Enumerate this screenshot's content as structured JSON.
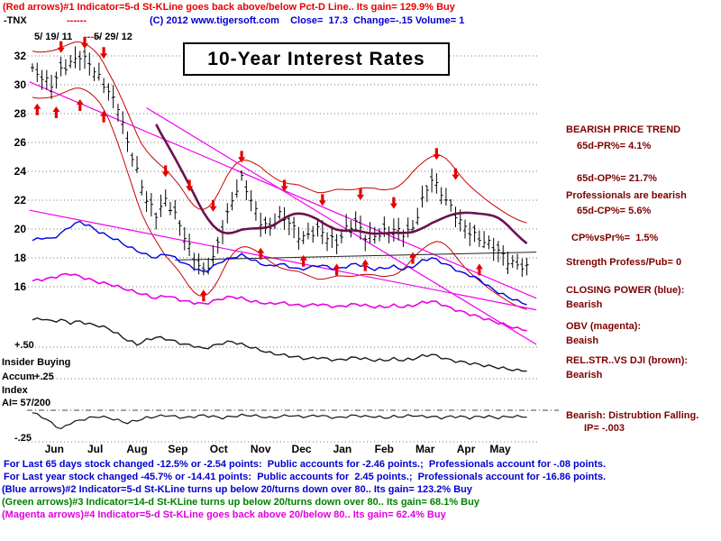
{
  "colors": {
    "red": "#e80000",
    "blue": "#0000d0",
    "green": "#008000",
    "magenta": "#e000e0",
    "maroon": "#7d0000",
    "black": "#000000"
  },
  "header": {
    "line1": "(Red arrows)#1 Indicator=5-d St-KLine goes back above/below Pct-D Line.. Its gain= 129.9% Buy",
    "ticker": "-TNX",
    "dashes": "------",
    "info": "(C) 2012 www.tigersoft.com    Close=  17.3  Change=-.15 Volume= 1",
    "date_start": "5/ 19/ 11",
    "date_sep": "-----",
    "date_end": "5/ 29/ 12",
    "title": "10-Year Interest  Rates"
  },
  "left_axis": {
    "plus50": "+.50",
    "plus25": "+.25",
    "minus25": "-.25",
    "insider": "Insider Buying",
    "accum": "Accum",
    "index": "Index",
    "ai": "AI= 57/200"
  },
  "right_panel": {
    "color": "#7d0000",
    "lines": [
      "BEARISH PRICE TREND",
      "65d-PR%= 4.1%",
      "65d-OP%= 21.7%",
      "Professionals are bearish",
      "65d-CP%= 5.6%",
      "CP%vsPr%=  1.5%",
      "Strength Profess/Pub= 0",
      "CLOSING POWER (blue):",
      "Bearish",
      "OBV (magenta):",
      "Beaish",
      "REL.STR..VS DJI (brown):",
      "Bearish",
      "Bearish: Distrubtion Falling.",
      "IP= -.003"
    ]
  },
  "footer": {
    "lines": [
      {
        "text": "For Last 65 days stock changed -12.5% or -2.54 points:  Public accounts for -2.46 points.;  Professionals account for -.08 points.",
        "color": "#0000d0"
      },
      {
        "text": "For Last year stock changed -45.7% or -14.41 points:  Public accounts for  2.45 points.;  Professionals account for -16.86 points.",
        "color": "#0000d0"
      },
      {
        "text": "(Blue arrows)#2 Indicator=5-d St-KLine turns up below 20/turns down over 80.. Its gain= 123.2% Buy",
        "color": "#0000d0"
      },
      {
        "text": "(Green arrows)#3 Indicator=14-d St-KLine turns up below 20/turns down over 80.. Its gain= 68.1% Buy",
        "color": "#008000"
      },
      {
        "text": "(Magenta arrows)#4 Indicator=5-d St-KLine goes back above 20/below 80.. Its gain= 62.4% Buy",
        "color": "#e000e0"
      }
    ]
  },
  "chart_data": {
    "type": "candlestick+line",
    "title": "10-Year Interest  Rates",
    "ticker": "-TNX",
    "close_last": 17.3,
    "change": -0.15,
    "volume": 1,
    "x_unit": "weeks from 5/19/2011 to 5/29/2012",
    "months": [
      "Jun",
      "Jul",
      "Aug",
      "Sep",
      "Oct",
      "Nov",
      "Dec",
      "Jan",
      "Feb",
      "Mar",
      "Apr",
      "May"
    ],
    "month_positions": [
      2.3,
      6.6,
      11,
      15.3,
      19.6,
      24,
      28.3,
      32.6,
      37,
      41.3,
      45.6,
      49.2
    ],
    "price_axis": {
      "min": 16,
      "max": 32,
      "ticks": [
        32,
        30,
        28,
        26,
        24,
        22,
        20,
        18,
        16
      ]
    },
    "accum_axis": {
      "ticks": [
        0.5,
        0.25,
        -0.25
      ],
      "zero_line": 0,
      "ai_reading": "57/200"
    },
    "close": [
      31,
      30.5,
      30,
      31,
      31.5,
      32,
      31.5,
      30.5,
      29.5,
      28.5,
      26,
      24,
      22,
      21,
      22,
      21,
      19.5,
      18,
      17,
      18,
      20,
      22,
      23.5,
      22,
      20.5,
      20,
      21,
      20.5,
      19.5,
      19.5,
      20,
      19.5,
      19,
      20,
      20.5,
      19.5,
      19.5,
      19.8,
      20,
      19.7,
      20,
      22,
      23.5,
      22.5,
      21.5,
      20.5,
      19.8,
      19.3,
      19,
      18.5,
      17.8,
      17.5,
      17.3
    ],
    "series": [
      {
        "name": "closing_power",
        "color": "#0000e0",
        "width": 1.4,
        "values": [
          19.2,
          19.4,
          19.3,
          19.7,
          20.2,
          20.5,
          20.2,
          19.8,
          19.5,
          19.2,
          18.8,
          18.5,
          18.2,
          18.0,
          18.3,
          18.0,
          17.6,
          17.3,
          17.0,
          17.4,
          17.8,
          18.0,
          18.2,
          17.9,
          17.6,
          17.4,
          17.6,
          17.4,
          17.2,
          17.3,
          17.5,
          17.4,
          17.2,
          17.4,
          17.6,
          17.4,
          17.2,
          17.3,
          17.4,
          17.2,
          17.4,
          17.8,
          18.0,
          17.7,
          17.4,
          17.0,
          16.8,
          16.5,
          16.0,
          15.6,
          15.3,
          15.0,
          14.8
        ]
      },
      {
        "name": "obv",
        "color": "#e800e8",
        "width": 1.6,
        "values": [
          16.4,
          16.5,
          16.6,
          16.8,
          16.9,
          16.7,
          16.5,
          16.3,
          16.2,
          16.0,
          15.8,
          15.6,
          15.4,
          15.2,
          15.4,
          15.2,
          15.0,
          14.9,
          14.8,
          15.0,
          15.2,
          15.3,
          15.2,
          15.0,
          14.9,
          14.8,
          14.9,
          14.8,
          14.7,
          14.7,
          14.8,
          14.7,
          14.6,
          14.7,
          14.8,
          14.7,
          14.6,
          14.6,
          14.7,
          14.6,
          14.7,
          14.9,
          15.0,
          14.8,
          14.5,
          14.3,
          14.1,
          13.9,
          13.7,
          13.5,
          13.3,
          13.1,
          13.0
        ]
      },
      {
        "name": "rel_str_vs_dji",
        "color": "#1a1a1a",
        "width": 1.4,
        "values": [
          13.7,
          13.8,
          13.6,
          13.7,
          13.5,
          13.6,
          13.4,
          13.3,
          13.1,
          12.7,
          12.3,
          12.0,
          12.3,
          12.5,
          12.4,
          12.2,
          12.0,
          11.9,
          11.7,
          11.9,
          12.1,
          12.2,
          12.0,
          11.8,
          11.6,
          11.4,
          11.3,
          11.2,
          11.1,
          11.0,
          11.1,
          11.0,
          10.9,
          11.0,
          11.1,
          11.0,
          10.9,
          10.9,
          11.0,
          10.9,
          11.0,
          11.2,
          11.3,
          11.1,
          10.9,
          10.8,
          10.7,
          10.6,
          10.5,
          10.4,
          10.3,
          10.2,
          10.2
        ]
      },
      {
        "name": "accum_index",
        "color": "#111111",
        "width": 1.2,
        "scale": "accum",
        "values": [
          -0.02,
          -0.05,
          -0.1,
          -0.15,
          -0.1,
          -0.08,
          -0.06,
          -0.05,
          -0.06,
          -0.08,
          -0.1,
          -0.08,
          -0.06,
          -0.05,
          -0.04,
          -0.05,
          -0.06,
          -0.05,
          -0.04,
          -0.05,
          -0.06,
          -0.05,
          -0.04,
          -0.04,
          -0.05,
          -0.06,
          -0.05,
          -0.04,
          -0.05,
          -0.05,
          -0.04,
          -0.05,
          -0.06,
          -0.05,
          -0.04,
          -0.05,
          -0.05,
          -0.06,
          -0.05,
          -0.05,
          -0.04,
          -0.05,
          -0.05,
          -0.06,
          -0.05,
          -0.05,
          -0.06,
          -0.05,
          -0.05,
          -0.06,
          -0.05,
          -0.05,
          -0.05
        ]
      }
    ],
    "ma_color": "#6b1150",
    "ma_window_weeks": 8,
    "band_color": "#c80000",
    "arrow_color": "#e60000",
    "trendlines": [
      {
        "color": "#f000f0",
        "from": [
          -0.3,
          30.2
        ],
        "to": [
          53,
          15.2
        ]
      },
      {
        "color": "#f000f0",
        "from": [
          12,
          28.4
        ],
        "to": [
          53,
          12.0
        ]
      },
      {
        "color": "#f000f0",
        "from": [
          -0.3,
          21.3
        ],
        "to": [
          53,
          14.4
        ]
      },
      {
        "color": "#222222",
        "width": 1,
        "from": [
          15,
          17.85
        ],
        "to": [
          53,
          18.4
        ]
      }
    ],
    "arrows": {
      "up": [
        [
          0.5,
          28.7
        ],
        [
          2.5,
          28.5
        ],
        [
          5.0,
          29.0
        ],
        [
          7.5,
          28.2
        ],
        [
          18,
          15.8
        ],
        [
          24,
          18.7
        ],
        [
          28.5,
          18.2
        ],
        [
          32,
          17.6
        ],
        [
          35,
          17.9
        ],
        [
          40,
          18.4
        ],
        [
          47,
          17.6
        ]
      ],
      "down": [
        [
          3,
          32.2
        ],
        [
          5.5,
          32.5
        ],
        [
          7.5,
          31.8
        ],
        [
          14,
          23.6
        ],
        [
          16.5,
          22.6
        ],
        [
          19,
          21.2
        ],
        [
          22,
          24.6
        ],
        [
          26.5,
          22.6
        ],
        [
          30.5,
          21.6
        ],
        [
          34.5,
          22.0
        ],
        [
          38,
          21.4
        ],
        [
          42.5,
          24.8
        ],
        [
          44.5,
          23.4
        ]
      ]
    }
  }
}
